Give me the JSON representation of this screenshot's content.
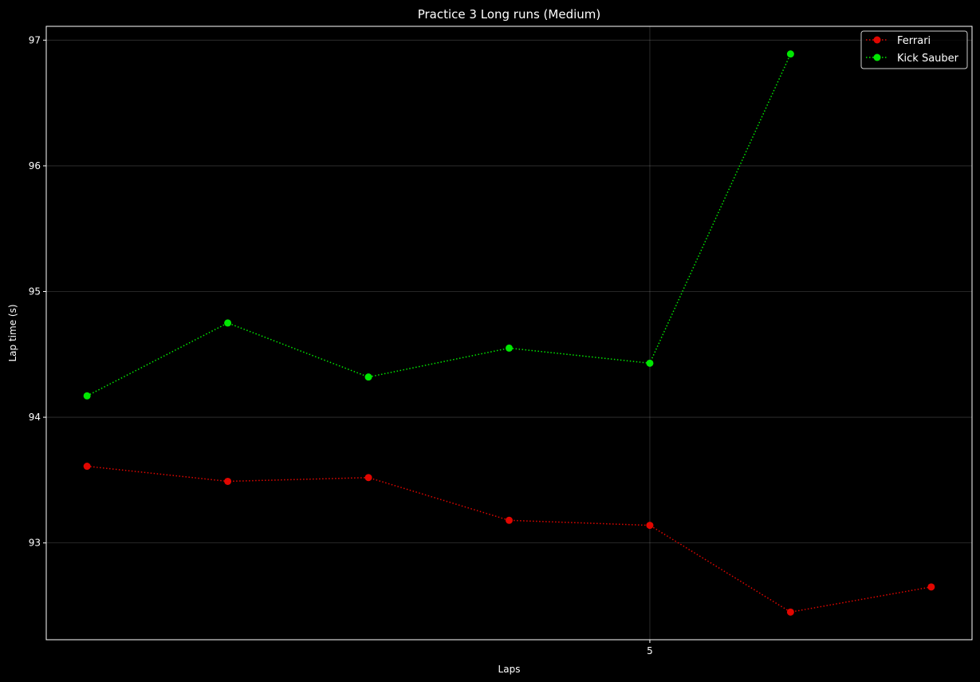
{
  "chart_data": {
    "type": "line",
    "title": "Practice 3 Long runs (Medium)",
    "xlabel": "Laps",
    "ylabel": "Lap time (s)",
    "x": [
      1,
      2,
      3,
      4,
      5,
      6,
      7
    ],
    "xticks": [
      5
    ],
    "yticks": [
      93,
      94,
      95,
      96,
      97
    ],
    "xlim": [
      0.71,
      7.29
    ],
    "ylim": [
      92.23,
      97.11
    ],
    "grid": true,
    "legend_position": "top-right",
    "series": [
      {
        "name": "Ferrari",
        "color": "#e10600",
        "values": [
          93.61,
          93.49,
          93.52,
          93.18,
          93.14,
          92.45,
          92.65
        ]
      },
      {
        "name": "Kick Sauber",
        "color": "#00e701",
        "values": [
          94.17,
          94.75,
          94.32,
          94.55,
          94.43,
          96.89,
          null
        ]
      }
    ]
  }
}
